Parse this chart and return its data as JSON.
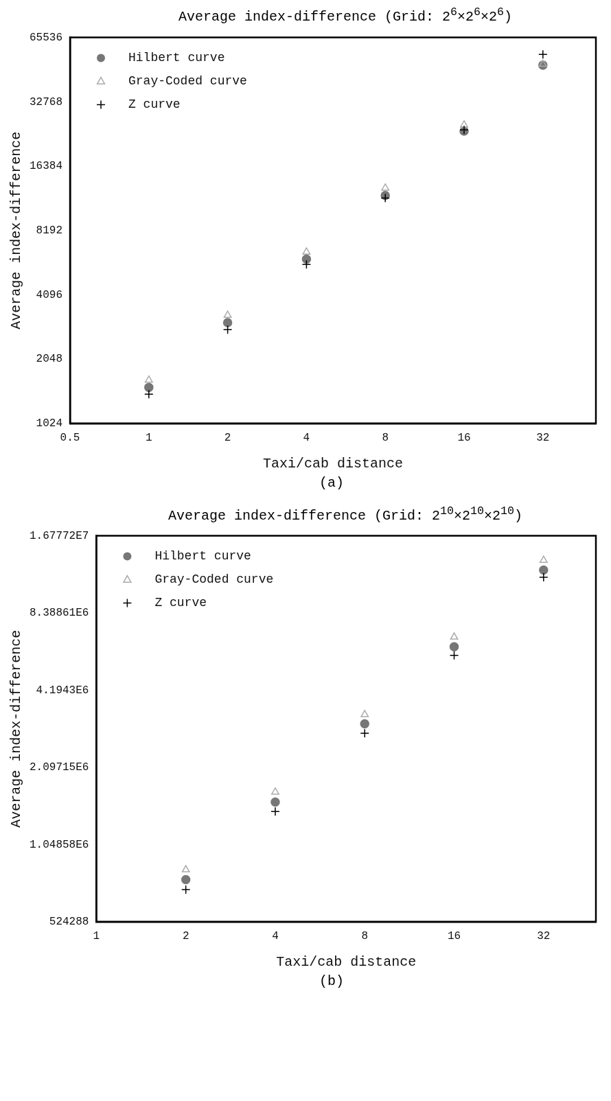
{
  "chart_data": [
    {
      "type": "scatter",
      "title": "Average index-difference (Grid: 2$^{6}$×2$^{6}$×2$^{6}$)",
      "xlabel": "Taxi/cab distance",
      "ylabel": "Average index-difference",
      "annotations": [
        "(a)"
      ],
      "x": [
        1,
        2,
        4,
        8,
        16,
        32
      ],
      "log": "xy",
      "xlim": [
        0.5,
        51
      ],
      "xticks": [
        0.5,
        1,
        2,
        4,
        8,
        16,
        32
      ],
      "ylim": [
        1024,
        65536
      ],
      "yticks": [
        1024,
        2048,
        4096,
        8192,
        16384,
        32768,
        65536
      ],
      "legend": "top left",
      "series": [
        {
          "name": "Hilbert curve",
          "color": "#777777",
          "marker": "circle",
          "values": [
            1509,
            3032,
            6015,
            11938,
            23890,
            48650
          ]
        },
        {
          "name": "Gray-Coded curve",
          "color": "#aaaaaa",
          "marker": "triangle",
          "values": [
            1634,
            3285,
            6490,
            12935,
            25550,
            49120
          ]
        },
        {
          "name": "Z curve",
          "color": "#000000",
          "marker": "cross",
          "values": [
            1402,
            2811,
            5678,
            11624,
            24210,
            54660
          ]
        }
      ]
    },
    {
      "type": "scatter",
      "title": "Average index-difference (Grid: 2$^{10}$×2$^{10}$×2$^{10}$)",
      "xlabel": "Taxi/cab distance",
      "ylabel": "Average index-difference",
      "annotations": [
        "(b)"
      ],
      "x": [
        2,
        4,
        8,
        16,
        32
      ],
      "log": "xy",
      "xlim": [
        1,
        48
      ],
      "xticks": [
        1,
        2,
        4,
        8,
        16,
        32
      ],
      "ylim": [
        524288,
        16777216
      ],
      "yticks": [
        524288,
        {
          "value": 1048576,
          "label": "1.04858E6"
        },
        {
          "value": 2097152,
          "label": "2.09715E6"
        },
        {
          "value": 4194304,
          "label": "4.1943E6"
        },
        {
          "value": 8388608,
          "label": "8.38861E6"
        },
        {
          "value": 16777216,
          "label": "1.67772E7"
        }
      ],
      "legend": "top left",
      "series": [
        {
          "name": "Hilbert curve",
          "color": "#777777",
          "marker": "circle",
          "values": [
            765000,
            1536000,
            3100000,
            6190000,
            12340000
          ]
        },
        {
          "name": "Gray-Coded curve",
          "color": "#aaaaaa",
          "marker": "triangle",
          "values": [
            836000,
            1680000,
            3370000,
            6760000,
            13470000
          ]
        },
        {
          "name": "Z curve",
          "color": "#000000",
          "marker": "cross",
          "values": [
            700000,
            1410000,
            2850000,
            5730000,
            11570000
          ]
        }
      ]
    }
  ]
}
